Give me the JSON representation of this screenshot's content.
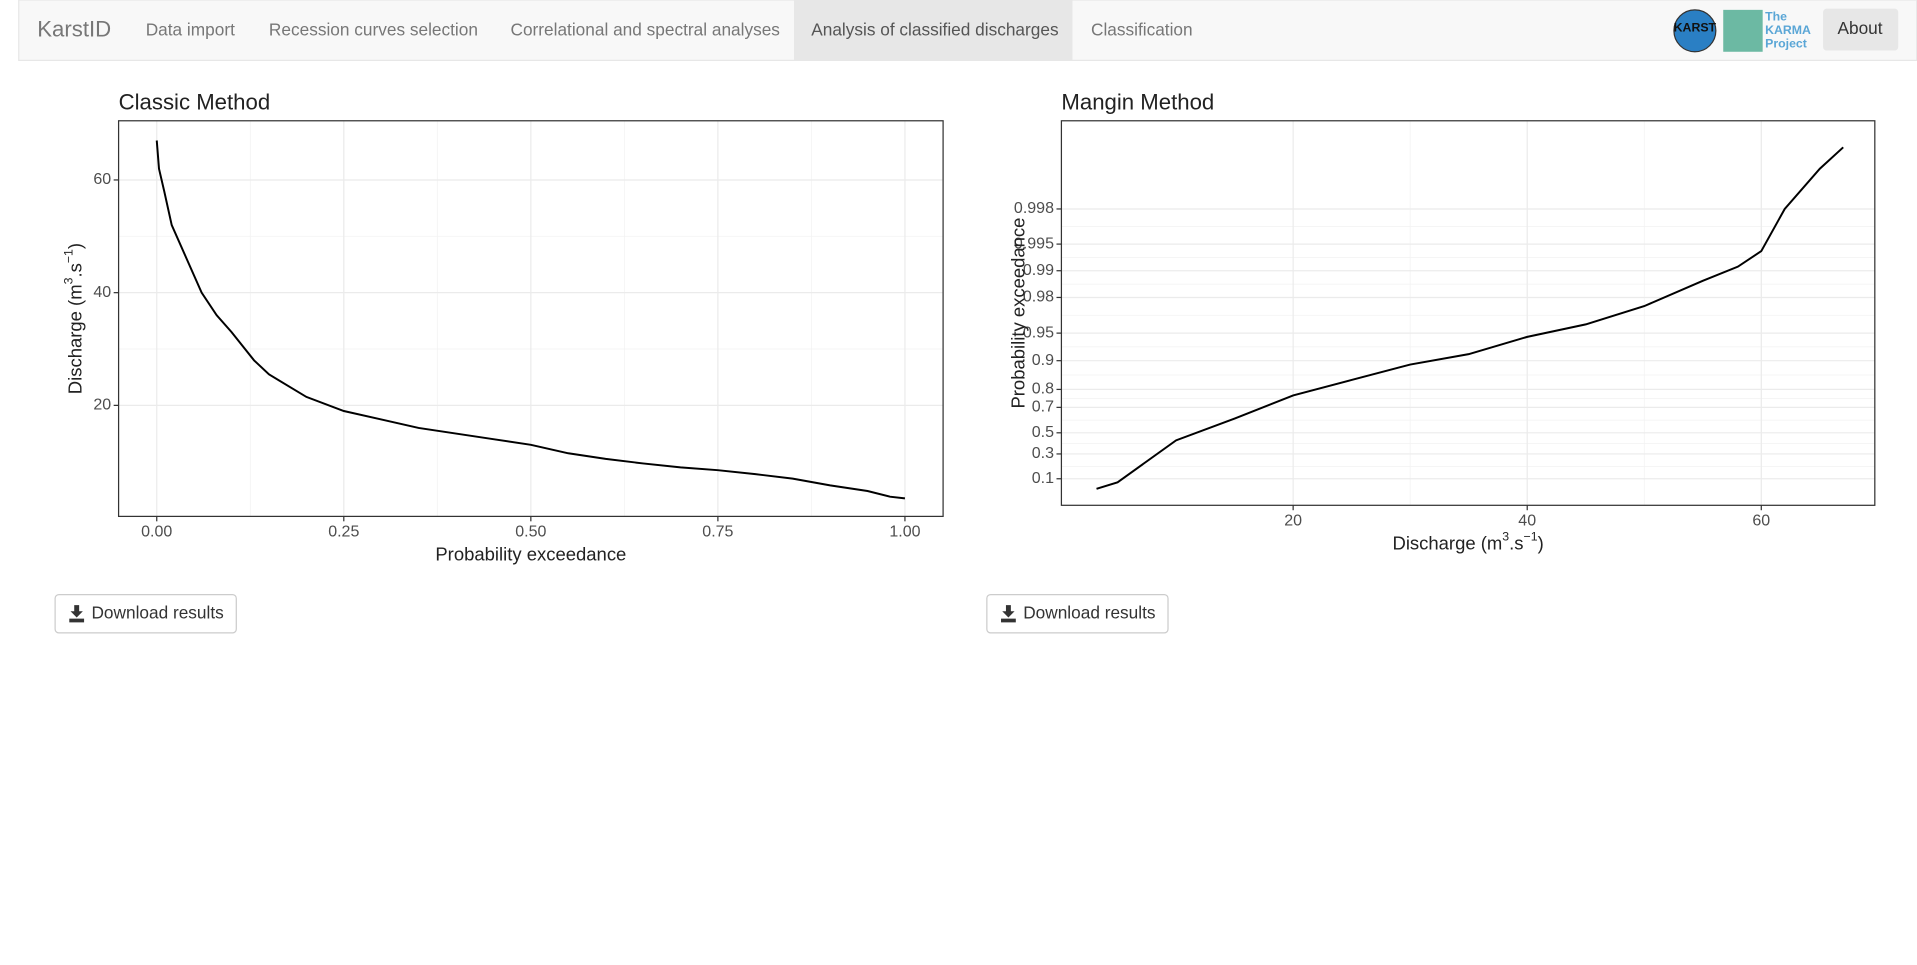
{
  "nav": {
    "brand": "KarstID",
    "items": [
      "Data import",
      "Recession curves selection",
      "Correlational and spectral analyses",
      "Analysis of classified discharges",
      "Classification"
    ],
    "active": 3,
    "logo_karst": "KARST",
    "logo_karma": [
      "The",
      "KARMA",
      "Project"
    ],
    "about": "About"
  },
  "chart_data": [
    {
      "type": "line",
      "title": "Classic Method",
      "x_label": "Probability exceedance",
      "y_label_parts": [
        "Discharge (m",
        "3",
        ".s",
        "−1",
        ")"
      ],
      "x": [
        0,
        0.003,
        0.01,
        0.02,
        0.04,
        0.06,
        0.08,
        0.1,
        0.13,
        0.15,
        0.2,
        0.25,
        0.3,
        0.35,
        0.4,
        0.45,
        0.5,
        0.55,
        0.6,
        0.65,
        0.7,
        0.75,
        0.8,
        0.85,
        0.9,
        0.95,
        0.98,
        1.0
      ],
      "values": [
        67,
        62,
        58,
        52,
        46,
        40,
        36,
        33,
        28,
        25.5,
        21.5,
        19,
        17.5,
        16,
        15,
        14,
        13,
        11.5,
        10.5,
        9.7,
        9,
        8.5,
        7.8,
        7,
        5.8,
        4.8,
        3.8,
        3.5
      ],
      "color": "#000000",
      "xlim": [
        -0.051,
        1.051
      ],
      "ylim": [
        0.3,
        70.5
      ],
      "xticks": [
        {
          "value": 0,
          "label": "0.00"
        },
        {
          "value": 0.25,
          "label": "0.25"
        },
        {
          "value": 0.5,
          "label": "0.50"
        },
        {
          "value": 0.75,
          "label": "0.75"
        },
        {
          "value": 1,
          "label": "1.00"
        }
      ],
      "yticks": [
        20,
        40,
        60
      ],
      "grid": true
    },
    {
      "type": "line",
      "title": "Mangin Method",
      "x_label_parts": [
        "Discharge (m",
        "3",
        ".s",
        "−1",
        ")"
      ],
      "y_label": "Probability exceedance",
      "x": [
        3.2,
        5,
        10,
        15,
        20,
        25,
        30,
        35,
        40,
        45,
        50,
        55,
        58,
        60,
        62,
        65,
        67
      ],
      "values": [
        0.05,
        0.08,
        0.43,
        0.62,
        0.77,
        0.84,
        0.89,
        0.915,
        0.945,
        0.96,
        0.975,
        0.987,
        0.991,
        0.994,
        0.998,
        0.9993,
        0.9996
      ],
      "color": "#000000",
      "yscale": "gumbel",
      "xlim": [
        0.2,
        69.7
      ],
      "ylim": [
        0.01,
        0.9998
      ],
      "xticks": [
        20,
        40,
        60
      ],
      "yticks": [
        0.1,
        0.3,
        0.5,
        0.7,
        0.8,
        0.9,
        0.95,
        0.98,
        0.99,
        0.995,
        0.998
      ],
      "grid": true
    }
  ],
  "buttons": [
    "Download results",
    "Download results"
  ]
}
